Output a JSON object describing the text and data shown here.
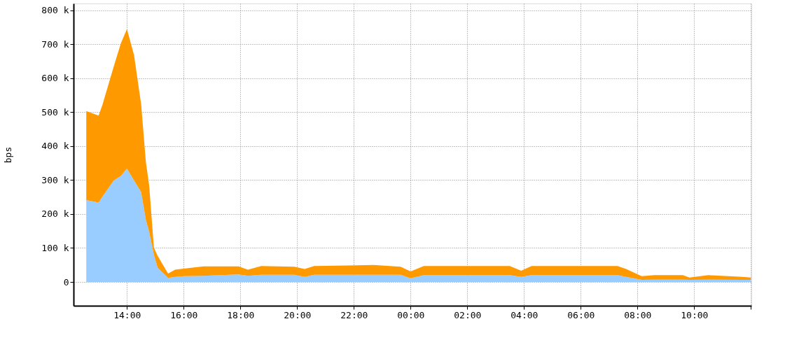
{
  "chart_data": {
    "type": "area",
    "ylabel": "bps",
    "stacked": true,
    "grid": true,
    "legend": false,
    "x": [
      "2000-01-01T12:34",
      "2000-01-01T13:00",
      "2000-01-01T13:08",
      "2000-01-01T13:32",
      "2000-01-01T13:47",
      "2000-01-01T14:00",
      "2000-01-01T14:15",
      "2000-01-01T14:30",
      "2000-01-01T14:40",
      "2000-01-01T14:47",
      "2000-01-01T14:57",
      "2000-01-01T15:05",
      "2000-01-01T15:27",
      "2000-01-01T15:42",
      "2000-01-01T16:00",
      "2000-01-01T16:42",
      "2000-01-01T17:56",
      "2000-01-01T18:16",
      "2000-01-01T18:44",
      "2000-01-01T19:54",
      "2000-01-01T20:16",
      "2000-01-01T20:36",
      "2000-01-01T22:42",
      "2000-01-01T23:39",
      "2000-01-02T00:00",
      "2000-01-02T00:28",
      "2000-01-02T03:30",
      "2000-01-02T03:54",
      "2000-01-02T04:16",
      "2000-01-02T07:18",
      "2000-01-02T07:36",
      "2000-01-02T08:09",
      "2000-01-02T08:36",
      "2000-01-02T09:36",
      "2000-01-02T09:50",
      "2000-01-02T10:30",
      "2000-01-02T11:42",
      "2000-01-02T12:00"
    ],
    "series": [
      {
        "color": "#99ccff",
        "values": [
          241000,
          234000,
          251000,
          299000,
          312000,
          334000,
          299000,
          265000,
          183000,
          148000,
          80000,
          42000,
          12000,
          15000,
          17000,
          18000,
          22000,
          18000,
          21000,
          21000,
          15000,
          21000,
          21000,
          21000,
          11000,
          20000,
          20000,
          15000,
          20000,
          20000,
          15000,
          6000,
          7000,
          7000,
          6000,
          7000,
          6000,
          6000
        ]
      },
      {
        "color": "#ff9900",
        "values": [
          262000,
          256000,
          270000,
          335000,
          390000,
          411000,
          369000,
          259000,
          171000,
          137000,
          21000,
          35000,
          13000,
          21000,
          22000,
          28000,
          24000,
          18000,
          26000,
          24000,
          23000,
          26000,
          29000,
          24000,
          20000,
          27000,
          27000,
          18000,
          27000,
          27000,
          23000,
          11000,
          13000,
          13000,
          7000,
          13000,
          9000,
          7000
        ]
      }
    ],
    "xlim": [
      "2000-01-01T12:07",
      "2000-01-02T12:01"
    ],
    "xticks": [
      {
        "value": "2000-01-01T14:00",
        "label": "14:00"
      },
      {
        "value": "2000-01-01T16:00",
        "label": "16:00"
      },
      {
        "value": "2000-01-01T18:00",
        "label": "18:00"
      },
      {
        "value": "2000-01-01T20:00",
        "label": "20:00"
      },
      {
        "value": "2000-01-01T22:00",
        "label": "22:00"
      },
      {
        "value": "2000-01-02T00:00",
        "label": "00:00"
      },
      {
        "value": "2000-01-02T02:00",
        "label": "02:00"
      },
      {
        "value": "2000-01-02T04:00",
        "label": "04:00"
      },
      {
        "value": "2000-01-02T06:00",
        "label": "06:00"
      },
      {
        "value": "2000-01-02T08:00",
        "label": "08:00"
      },
      {
        "value": "2000-01-02T10:00",
        "label": "10:00"
      },
      {
        "value": "2000-01-02T12:00",
        "label": null
      }
    ],
    "ylim": [
      -70000,
      820000
    ],
    "yticks": [
      0,
      {
        "value": 100000,
        "label": "100 k"
      },
      {
        "value": 200000,
        "label": "200 k"
      },
      {
        "value": 300000,
        "label": "300 k"
      },
      {
        "value": 400000,
        "label": "400 k"
      },
      {
        "value": 500000,
        "label": "500 k"
      },
      {
        "value": 600000,
        "label": "600 k"
      },
      {
        "value": 700000,
        "label": "700 k"
      },
      {
        "value": 800000,
        "label": "800 k"
      }
    ]
  }
}
